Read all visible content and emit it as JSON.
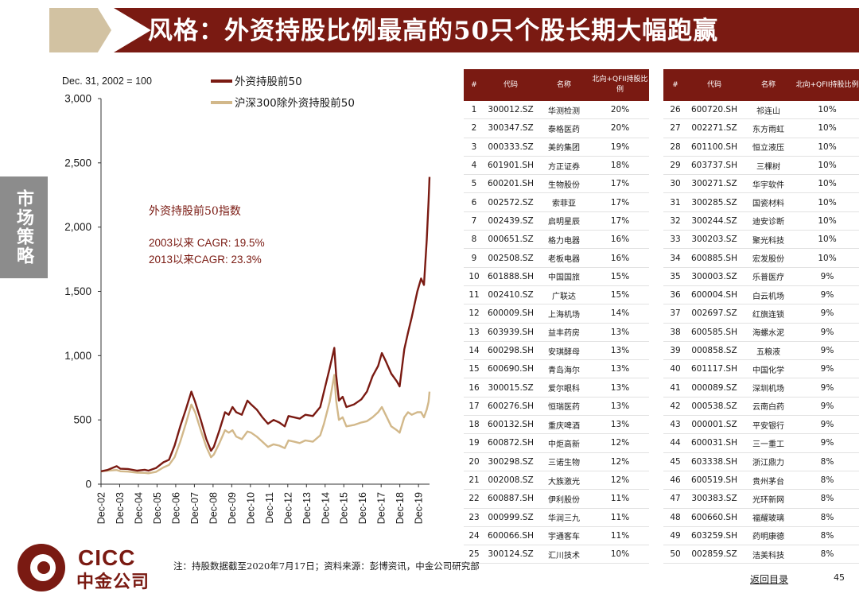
{
  "title": "风格：外资持股比例最高的50只个股长期大幅跑赢",
  "side_label": "市场策略",
  "chart_data": {
    "type": "line",
    "base_note": "Dec. 31, 2002 = 100",
    "ylim": [
      0,
      3000
    ],
    "y_ticks": [
      "0",
      "500",
      "1,000",
      "1,500",
      "2,000",
      "2,500",
      "3,000"
    ],
    "y_tick_values": [
      0,
      500,
      1000,
      1500,
      2000,
      2500,
      3000
    ],
    "x_ticks": [
      "Dec-02",
      "Dec-03",
      "Dec-04",
      "Dec-05",
      "Dec-06",
      "Dec-07",
      "Dec-08",
      "Dec-09",
      "Dec-10",
      "Dec-11",
      "Dec-12",
      "Dec-13",
      "Dec-14",
      "Dec-15",
      "Dec-16",
      "Dec-17",
      "Dec-18",
      "Dec-19"
    ],
    "x_tick_values": [
      2002.96,
      2003.96,
      2004.96,
      2005.96,
      2006.96,
      2007.96,
      2008.96,
      2009.96,
      2010.96,
      2011.96,
      2012.96,
      2013.96,
      2014.96,
      2015.96,
      2016.96,
      2017.96,
      2018.96,
      2019.96
    ],
    "xlim": [
      2002.96,
      2020.55
    ],
    "annotation_title": "外资持股前50指数",
    "annotation_lines": [
      "2003以来 CAGR: 19.5%",
      "2013以来CAGR:  23.3%"
    ],
    "series": [
      {
        "name": "外资持股前50",
        "color": "#7a1a12",
        "points": [
          [
            2002.96,
            100
          ],
          [
            2003.3,
            110
          ],
          [
            2003.8,
            140
          ],
          [
            2004.0,
            120
          ],
          [
            2004.4,
            118
          ],
          [
            2004.9,
            105
          ],
          [
            2005.3,
            112
          ],
          [
            2005.5,
            105
          ],
          [
            2005.9,
            125
          ],
          [
            2006.3,
            170
          ],
          [
            2006.6,
            190
          ],
          [
            2006.9,
            300
          ],
          [
            2007.2,
            450
          ],
          [
            2007.5,
            580
          ],
          [
            2007.8,
            720
          ],
          [
            2008.0,
            640
          ],
          [
            2008.3,
            500
          ],
          [
            2008.6,
            350
          ],
          [
            2008.85,
            260
          ],
          [
            2009.0,
            290
          ],
          [
            2009.3,
            420
          ],
          [
            2009.6,
            560
          ],
          [
            2009.8,
            540
          ],
          [
            2010.0,
            600
          ],
          [
            2010.2,
            560
          ],
          [
            2010.5,
            540
          ],
          [
            2010.8,
            650
          ],
          [
            2011.0,
            620
          ],
          [
            2011.3,
            580
          ],
          [
            2011.6,
            520
          ],
          [
            2011.9,
            470
          ],
          [
            2012.2,
            500
          ],
          [
            2012.5,
            480
          ],
          [
            2012.8,
            450
          ],
          [
            2013.0,
            530
          ],
          [
            2013.3,
            520
          ],
          [
            2013.6,
            510
          ],
          [
            2013.9,
            540
          ],
          [
            2014.3,
            530
          ],
          [
            2014.7,
            600
          ],
          [
            2014.9,
            720
          ],
          [
            2015.2,
            900
          ],
          [
            2015.45,
            1060
          ],
          [
            2015.55,
            850
          ],
          [
            2015.7,
            650
          ],
          [
            2015.9,
            680
          ],
          [
            2016.1,
            600
          ],
          [
            2016.5,
            620
          ],
          [
            2016.9,
            660
          ],
          [
            2017.2,
            720
          ],
          [
            2017.5,
            840
          ],
          [
            2017.8,
            920
          ],
          [
            2018.0,
            1020
          ],
          [
            2018.2,
            960
          ],
          [
            2018.5,
            860
          ],
          [
            2018.8,
            800
          ],
          [
            2018.95,
            760
          ],
          [
            2019.2,
            1050
          ],
          [
            2019.4,
            1180
          ],
          [
            2019.6,
            1300
          ],
          [
            2019.9,
            1500
          ],
          [
            2020.1,
            1600
          ],
          [
            2020.25,
            1550
          ],
          [
            2020.4,
            1900
          ],
          [
            2020.5,
            2200
          ],
          [
            2020.55,
            2390
          ]
        ]
      },
      {
        "name": "沪深300除外资持股前50",
        "color": "#d2b88a",
        "points": [
          [
            2002.96,
            100
          ],
          [
            2003.3,
            105
          ],
          [
            2003.8,
            110
          ],
          [
            2004.0,
            100
          ],
          [
            2004.4,
            98
          ],
          [
            2004.9,
            90
          ],
          [
            2005.3,
            88
          ],
          [
            2005.5,
            85
          ],
          [
            2005.9,
            95
          ],
          [
            2006.3,
            130
          ],
          [
            2006.6,
            150
          ],
          [
            2006.9,
            210
          ],
          [
            2007.2,
            330
          ],
          [
            2007.5,
            470
          ],
          [
            2007.8,
            620
          ],
          [
            2008.0,
            560
          ],
          [
            2008.3,
            420
          ],
          [
            2008.6,
            290
          ],
          [
            2008.85,
            210
          ],
          [
            2009.0,
            230
          ],
          [
            2009.3,
            320
          ],
          [
            2009.6,
            420
          ],
          [
            2009.8,
            400
          ],
          [
            2010.0,
            420
          ],
          [
            2010.2,
            370
          ],
          [
            2010.5,
            350
          ],
          [
            2010.8,
            410
          ],
          [
            2011.0,
            400
          ],
          [
            2011.3,
            370
          ],
          [
            2011.6,
            330
          ],
          [
            2011.9,
            290
          ],
          [
            2012.2,
            310
          ],
          [
            2012.5,
            300
          ],
          [
            2012.8,
            280
          ],
          [
            2013.0,
            340
          ],
          [
            2013.3,
            330
          ],
          [
            2013.6,
            320
          ],
          [
            2013.9,
            340
          ],
          [
            2014.3,
            330
          ],
          [
            2014.7,
            380
          ],
          [
            2014.9,
            470
          ],
          [
            2015.2,
            640
          ],
          [
            2015.45,
            850
          ],
          [
            2015.55,
            650
          ],
          [
            2015.7,
            500
          ],
          [
            2015.9,
            520
          ],
          [
            2016.1,
            450
          ],
          [
            2016.5,
            460
          ],
          [
            2016.9,
            480
          ],
          [
            2017.2,
            490
          ],
          [
            2017.5,
            520
          ],
          [
            2017.8,
            560
          ],
          [
            2018.0,
            600
          ],
          [
            2018.2,
            540
          ],
          [
            2018.5,
            450
          ],
          [
            2018.8,
            420
          ],
          [
            2018.95,
            400
          ],
          [
            2019.2,
            520
          ],
          [
            2019.4,
            560
          ],
          [
            2019.6,
            540
          ],
          [
            2019.9,
            560
          ],
          [
            2020.1,
            560
          ],
          [
            2020.25,
            520
          ],
          [
            2020.4,
            580
          ],
          [
            2020.5,
            640
          ],
          [
            2020.55,
            720
          ]
        ]
      }
    ]
  },
  "table": {
    "headers": [
      "#",
      "代码",
      "名称",
      "北向+QFII持股比例"
    ],
    "left_rows": [
      [
        "1",
        "300012.SZ",
        "华测检测",
        "20%"
      ],
      [
        "2",
        "300347.SZ",
        "泰格医药",
        "20%"
      ],
      [
        "3",
        "000333.SZ",
        "美的集团",
        "19%"
      ],
      [
        "4",
        "601901.SH",
        "方正证券",
        "18%"
      ],
      [
        "5",
        "600201.SH",
        "生物股份",
        "17%"
      ],
      [
        "6",
        "002572.SZ",
        "索菲亚",
        "17%"
      ],
      [
        "7",
        "002439.SZ",
        "启明星辰",
        "17%"
      ],
      [
        "8",
        "000651.SZ",
        "格力电器",
        "16%"
      ],
      [
        "9",
        "002508.SZ",
        "老板电器",
        "16%"
      ],
      [
        "10",
        "601888.SH",
        "中国国旅",
        "15%"
      ],
      [
        "11",
        "002410.SZ",
        "广联达",
        "15%"
      ],
      [
        "12",
        "600009.SH",
        "上海机场",
        "14%"
      ],
      [
        "13",
        "603939.SH",
        "益丰药房",
        "13%"
      ],
      [
        "14",
        "600298.SH",
        "安琪酵母",
        "13%"
      ],
      [
        "15",
        "600690.SH",
        "青岛海尔",
        "13%"
      ],
      [
        "16",
        "300015.SZ",
        "爱尔眼科",
        "13%"
      ],
      [
        "17",
        "600276.SH",
        "恒瑞医药",
        "13%"
      ],
      [
        "18",
        "600132.SH",
        "重庆啤酒",
        "13%"
      ],
      [
        "19",
        "600872.SH",
        "中炬高新",
        "12%"
      ],
      [
        "20",
        "300298.SZ",
        "三诺生物",
        "12%"
      ],
      [
        "21",
        "002008.SZ",
        "大族激光",
        "12%"
      ],
      [
        "22",
        "600887.SH",
        "伊利股份",
        "11%"
      ],
      [
        "23",
        "000999.SZ",
        "华润三九",
        "11%"
      ],
      [
        "24",
        "600066.SH",
        "宇通客车",
        "11%"
      ],
      [
        "25",
        "300124.SZ",
        "汇川技术",
        "10%"
      ]
    ],
    "right_rows": [
      [
        "26",
        "600720.SH",
        "祁连山",
        "10%"
      ],
      [
        "27",
        "002271.SZ",
        "东方雨虹",
        "10%"
      ],
      [
        "28",
        "601100.SH",
        "恒立液压",
        "10%"
      ],
      [
        "29",
        "603737.SH",
        "三棵树",
        "10%"
      ],
      [
        "30",
        "300271.SZ",
        "华宇软件",
        "10%"
      ],
      [
        "31",
        "300285.SZ",
        "国瓷材料",
        "10%"
      ],
      [
        "32",
        "300244.SZ",
        "迪安诊断",
        "10%"
      ],
      [
        "33",
        "300203.SZ",
        "聚光科技",
        "10%"
      ],
      [
        "34",
        "600885.SH",
        "宏发股份",
        "10%"
      ],
      [
        "35",
        "300003.SZ",
        "乐普医疗",
        "9%"
      ],
      [
        "36",
        "600004.SH",
        "白云机场",
        "9%"
      ],
      [
        "37",
        "002697.SZ",
        "红旗连锁",
        "9%"
      ],
      [
        "38",
        "600585.SH",
        "海螺水泥",
        "9%"
      ],
      [
        "39",
        "000858.SZ",
        "五粮液",
        "9%"
      ],
      [
        "40",
        "601117.SH",
        "中国化学",
        "9%"
      ],
      [
        "41",
        "000089.SZ",
        "深圳机场",
        "9%"
      ],
      [
        "42",
        "000538.SZ",
        "云南白药",
        "9%"
      ],
      [
        "43",
        "000001.SZ",
        "平安银行",
        "9%"
      ],
      [
        "44",
        "600031.SH",
        "三一重工",
        "9%"
      ],
      [
        "45",
        "603338.SH",
        "浙江鼎力",
        "8%"
      ],
      [
        "46",
        "600519.SH",
        "贵州茅台",
        "8%"
      ],
      [
        "47",
        "300383.SZ",
        "光环新网",
        "8%"
      ],
      [
        "48",
        "600660.SH",
        "福耀玻璃",
        "8%"
      ],
      [
        "49",
        "603259.SH",
        "药明康德",
        "8%"
      ],
      [
        "50",
        "002859.SZ",
        "洁美科技",
        "8%"
      ]
    ]
  },
  "footnote": "注：持股数据截至2020年7月17日；资料来源：彭博资讯，中金公司研究部",
  "back_link": "返回目录",
  "page_number": "45",
  "logo": {
    "en": "CICC",
    "cn": "中金公司"
  }
}
